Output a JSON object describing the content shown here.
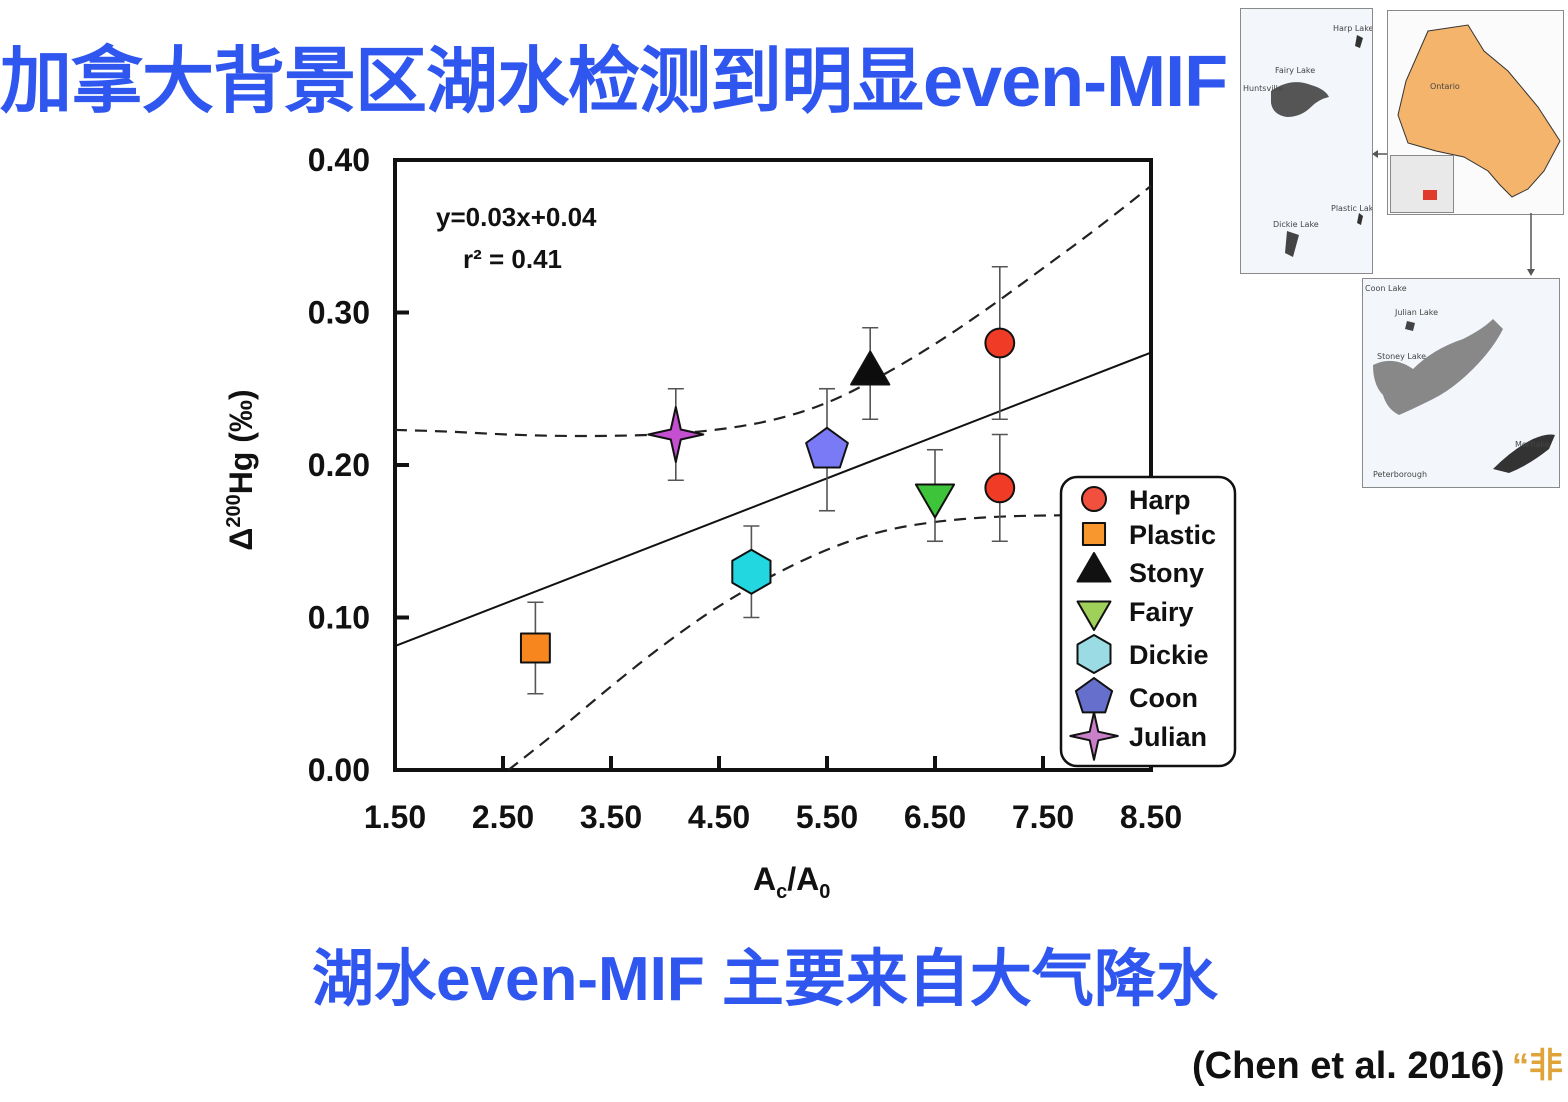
{
  "slide": {
    "title": "加拿大背景区湖水检测到明显even-MIF",
    "subtitle": "湖水even-MIF 主要来自大气降水",
    "citation": "(Chen et al. 2016)",
    "watermark": "“非"
  },
  "chart_data": {
    "type": "scatter",
    "title": "",
    "xlabel": "Ac/A0",
    "ylabel": "Δ200Hg (‰)",
    "xlim": [
      1.5,
      8.5
    ],
    "ylim": [
      0.0,
      0.4
    ],
    "x_ticks": [
      "1.50",
      "2.50",
      "3.50",
      "4.50",
      "5.50",
      "6.50",
      "7.50",
      "8.50"
    ],
    "y_ticks": [
      "0.00",
      "0.10",
      "0.20",
      "0.30",
      "0.40"
    ],
    "grid": false,
    "legend_position": "bottom-right",
    "equation": "y=0.03x+0.04",
    "r_squared_label": "r² = 0.41",
    "regression": {
      "slope": 0.0275,
      "intercept": 0.04
    },
    "confidence_band": {
      "upper": [
        [
          1.5,
          0.223
        ],
        [
          2.0,
          0.222
        ],
        [
          2.5,
          0.22
        ],
        [
          3.0,
          0.219
        ],
        [
          3.5,
          0.219
        ],
        [
          4.0,
          0.22
        ],
        [
          4.5,
          0.223
        ],
        [
          5.0,
          0.229
        ],
        [
          5.5,
          0.24
        ],
        [
          6.0,
          0.258
        ],
        [
          6.5,
          0.279
        ],
        [
          7.0,
          0.303
        ],
        [
          7.5,
          0.329
        ],
        [
          8.0,
          0.355
        ],
        [
          8.5,
          0.383
        ]
      ],
      "lower": [
        [
          2.55,
          0.0
        ],
        [
          3.0,
          0.025
        ],
        [
          3.5,
          0.055
        ],
        [
          4.0,
          0.083
        ],
        [
          4.5,
          0.108
        ],
        [
          5.0,
          0.128
        ],
        [
          5.5,
          0.145
        ],
        [
          6.0,
          0.157
        ],
        [
          6.5,
          0.163
        ],
        [
          7.0,
          0.166
        ],
        [
          7.5,
          0.167
        ],
        [
          8.0,
          0.167
        ]
      ]
    },
    "series": [
      {
        "name": "Harp",
        "marker": "circle",
        "color": "#f03c26",
        "points": [
          {
            "x": 7.1,
            "y": 0.28,
            "err": 0.05
          },
          {
            "x": 7.1,
            "y": 0.185,
            "err": 0.035
          }
        ]
      },
      {
        "name": "Plastic",
        "marker": "square",
        "color": "#f7861e",
        "points": [
          {
            "x": 2.8,
            "y": 0.08,
            "err": 0.03
          }
        ]
      },
      {
        "name": "Stony",
        "marker": "triangle-up",
        "color": "#0d0d0d",
        "points": [
          {
            "x": 5.9,
            "y": 0.26,
            "err": 0.03
          }
        ]
      },
      {
        "name": "Fairy",
        "marker": "triangle-down",
        "color": "#3ec43a",
        "points": [
          {
            "x": 6.5,
            "y": 0.18,
            "err": 0.03
          }
        ]
      },
      {
        "name": "Dickie",
        "marker": "hexagon",
        "color": "#22d7df",
        "points": [
          {
            "x": 4.8,
            "y": 0.13,
            "err": 0.03
          }
        ]
      },
      {
        "name": "Coon",
        "marker": "pentagon",
        "color": "#7b7af6",
        "points": [
          {
            "x": 5.5,
            "y": 0.21,
            "err": 0.04
          }
        ]
      },
      {
        "name": "Julian",
        "marker": "star4",
        "color": "#c44fd0",
        "points": [
          {
            "x": 4.1,
            "y": 0.22,
            "err": 0.03
          }
        ]
      }
    ]
  },
  "maps": {
    "left_labels": [
      "Harp Lake",
      "Fairy Lake",
      "Plastic Lake",
      "Dickie Lake",
      "Huntsville"
    ],
    "ontario_label": "Ontario",
    "bottom_labels": [
      "Coon Lake",
      "Julian Lake",
      "Stoney Lake",
      "Mortlake",
      "Peterborough"
    ]
  }
}
